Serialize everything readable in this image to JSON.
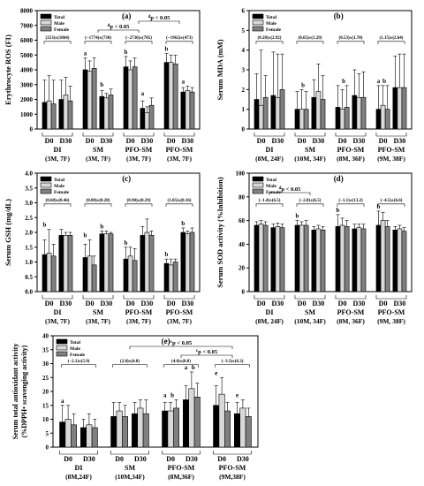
{
  "chart_data": [
    {
      "type": "bar",
      "panel": "(a)",
      "ylabel": "Erythrocyte ROS (FI)",
      "ylim": [
        0,
        8000
      ],
      "yticks": [
        0,
        1000,
        2000,
        3000,
        4000,
        5000,
        6000,
        7000,
        8000
      ],
      "legend": [
        "Total",
        "Male",
        "Female"
      ],
      "legend_position": "top-left",
      "series_colors": [
        "#000000",
        "#d9d9d9",
        "#808080"
      ],
      "groups": [
        {
          "name": "DI",
          "sub": "(3M, 7F)",
          "change": "(253)±(1864)"
        },
        {
          "name": "SM",
          "sub": "(3M, 7F)",
          "change": "(−1774)±(730)"
        },
        {
          "name": "PFO-SM",
          "sub": "(3M, 7F)",
          "change": "(−2736)±(705)"
        },
        {
          "name": "PFO-SM",
          "sub": "(3M, 7F)",
          "change": "(−1962)±(473)"
        }
      ],
      "timepoints": [
        "D0",
        "D30"
      ],
      "values": [
        [
          [
            1800,
            1900,
            1700
          ],
          [
            2000,
            2300,
            1900
          ]
        ],
        [
          [
            4000,
            3900,
            4100
          ],
          [
            2200,
            2100,
            2300
          ]
        ],
        [
          [
            4200,
            4000,
            4200
          ],
          [
            1400,
            1100,
            1600
          ]
        ],
        [
          [
            4500,
            4500,
            4400
          ],
          [
            2500,
            2600,
            2500
          ]
        ]
      ],
      "errors": [
        [
          [
            1500,
            1700,
            1600
          ],
          [
            1300,
            1200,
            1000
          ]
        ],
        [
          [
            800,
            700,
            700
          ],
          [
            400,
            300,
            400
          ]
        ],
        [
          [
            700,
            600,
            600
          ],
          [
            500,
            400,
            500
          ]
        ],
        [
          [
            600,
            500,
            600
          ],
          [
            300,
            300,
            300
          ]
        ]
      ],
      "bar_letters": [
        [
          [
            "",
            ""
          ],
          [
            "",
            ""
          ]
        ],
        [
          [
            "a",
            ""
          ],
          [
            "b",
            ""
          ]
        ],
        [
          [
            "b",
            ""
          ],
          [
            "a",
            ""
          ]
        ],
        [
          [
            "b",
            ""
          ],
          [
            "a",
            ""
          ]
        ]
      ],
      "annotations": [
        {
          "text": "d",
          "suffix": "p < 0.05",
          "from": 1,
          "to": 2,
          "level": 1
        },
        {
          "text": "d",
          "suffix": "p < 0.05",
          "from": 2,
          "to": 3,
          "level": 2
        }
      ]
    },
    {
      "type": "bar",
      "panel": "(b)",
      "ylabel": "Serum MDA (mM)",
      "ylim": [
        0,
        6
      ],
      "yticks": [
        0,
        1,
        2,
        3,
        4,
        5,
        6
      ],
      "legend": [
        "Total",
        "Male",
        "Female"
      ],
      "legend_position": "top-left",
      "series_colors": [
        "#000000",
        "#d9d9d9",
        "#808080"
      ],
      "groups": [
        {
          "name": "DI",
          "sub": "(8M, 24F)",
          "change": "(0.28)±(2.92)"
        },
        {
          "name": "SM",
          "sub": "(10M, 34F)",
          "change": "(0.65)±(1.29)"
        },
        {
          "name": "PFO-SM",
          "sub": "(8M, 36F)",
          "change": "(0.53)±(1.70)"
        },
        {
          "name": "PFO-SM",
          "sub": "(9M, 38F)",
          "change": "(1.15)±(2.64)"
        }
      ],
      "timepoints": [
        "D0",
        "D30"
      ],
      "values": [
        [
          [
            1.5,
            1.2,
            1.6
          ],
          [
            1.7,
            1.6,
            2.0
          ]
        ],
        [
          [
            1.0,
            1.0,
            1.0
          ],
          [
            1.6,
            1.9,
            1.5
          ]
        ],
        [
          [
            1.1,
            1.0,
            1.1
          ],
          [
            1.7,
            1.6,
            1.6
          ]
        ],
        [
          [
            1.0,
            1.2,
            1.0
          ],
          [
            2.1,
            2.1,
            2.1
          ]
        ]
      ],
      "errors": [
        [
          [
            1.3,
            2.8,
            1.1
          ],
          [
            2.2,
            2.2,
            1.8
          ]
        ],
        [
          [
            0.9,
            1.0,
            0.9
          ],
          [
            0.9,
            1.4,
            1.2
          ]
        ],
        [
          [
            1.1,
            1.0,
            1.1
          ],
          [
            1.3,
            1.2,
            1.3
          ]
        ],
        [
          [
            1.2,
            1.0,
            1.2
          ],
          [
            1.6,
            1.7,
            1.7
          ]
        ]
      ],
      "bar_letters": [
        [
          [
            "",
            ""
          ],
          [
            "",
            ""
          ]
        ],
        [
          [
            "",
            "b"
          ],
          [
            "",
            ""
          ]
        ],
        [
          [
            "",
            "b"
          ],
          [
            "",
            ""
          ]
        ],
        [
          [
            "a",
            "b"
          ],
          [
            "",
            ""
          ]
        ]
      ],
      "annotations": []
    },
    {
      "type": "bar",
      "panel": "(c)",
      "ylabel": "Serum GSH (mg/dL)",
      "ylim": [
        0,
        4
      ],
      "yticks": [
        0.0,
        0.5,
        1.0,
        1.5,
        2.0,
        2.5,
        3.0,
        3.5,
        4.0
      ],
      "legend": [
        "Total",
        "Male",
        "Female"
      ],
      "legend_position": "top-left",
      "series_colors": [
        "#000000",
        "#d9d9d9",
        "#808080"
      ],
      "groups": [
        {
          "name": "DI",
          "sub": "(3M, 7F)",
          "change": "(0.68)±(0.46)"
        },
        {
          "name": "SM",
          "sub": "(3M, 7F)",
          "change": "(0.80)±(0.28)"
        },
        {
          "name": "PFO-SM",
          "sub": "(3M, 7F)",
          "change": "(0.90)±(0.29)"
        },
        {
          "name": "PFO-SM",
          "sub": "(3M, 7F)",
          "change": "(1.05)±(0.16)"
        }
      ],
      "timepoints": [
        "D0",
        "D30"
      ],
      "values": [
        [
          [
            1.25,
            1.3,
            1.2
          ],
          [
            1.9,
            1.9,
            1.9
          ]
        ],
        [
          [
            1.15,
            1.2,
            0.9
          ],
          [
            1.95,
            1.95,
            1.95
          ]
        ],
        [
          [
            1.1,
            1.2,
            1.05
          ],
          [
            1.9,
            2.0,
            1.9
          ]
        ],
        [
          [
            0.95,
            0.9,
            1.0
          ],
          [
            2.0,
            1.95,
            2.0
          ]
        ]
      ],
      "errors": [
        [
          [
            0.5,
            0.8,
            0.4
          ],
          [
            0.2,
            0.1,
            0.1
          ]
        ],
        [
          [
            0.45,
            0.55,
            0.3
          ],
          [
            0.1,
            0.1,
            0.05
          ]
        ],
        [
          [
            0.4,
            0.3,
            0.4
          ],
          [
            0.3,
            0.45,
            0.15
          ]
        ],
        [
          [
            0.15,
            0.2,
            0.1
          ],
          [
            0.15,
            0.1,
            0.15
          ]
        ]
      ],
      "bar_letters": [
        [
          [
            "b",
            ""
          ],
          [
            "",
            ""
          ]
        ],
        [
          [
            "b",
            ""
          ],
          [
            "b",
            ""
          ]
        ],
        [
          [
            "b",
            ""
          ],
          [
            "",
            ""
          ]
        ],
        [
          [
            "b",
            ""
          ],
          [
            "b",
            ""
          ]
        ]
      ],
      "annotations": []
    },
    {
      "type": "bar",
      "panel": "(d)",
      "ylabel": "Serum SOD activity (%Inhibition)",
      "ylim": [
        0,
        100
      ],
      "yticks": [
        0,
        20,
        40,
        60,
        80,
        100
      ],
      "legend": [
        "Total",
        "Male",
        "Female"
      ],
      "legend_position": "top-left",
      "series_colors": [
        "#000000",
        "#d9d9d9",
        "#808080"
      ],
      "groups": [
        {
          "name": "DI",
          "sub": "(8M, 24F)",
          "change": "(−1.4)±(6.5)"
        },
        {
          "name": "SM",
          "sub": "(10M, 34F)",
          "change": "(−2.8)±(6.5)"
        },
        {
          "name": "PFO-SM",
          "sub": "(8M, 36F)",
          "change": "(−1.1)±(13.2)"
        },
        {
          "name": "PFO-SM",
          "sub": "(9M, 38F)",
          "change": "(−4.5)±(6.6)"
        }
      ],
      "timepoints": [
        "D0",
        "D30"
      ],
      "values": [
        [
          [
            56,
            57,
            56
          ],
          [
            54,
            55,
            54
          ]
        ],
        [
          [
            56,
            56,
            56
          ],
          [
            52,
            53,
            52
          ]
        ],
        [
          [
            55,
            56,
            55
          ],
          [
            53,
            54,
            53
          ]
        ],
        [
          [
            56,
            60,
            55
          ],
          [
            52,
            53,
            51
          ]
        ]
      ],
      "errors": [
        [
          [
            3,
            3,
            3
          ],
          [
            3,
            3,
            3
          ]
        ],
        [
          [
            4,
            3,
            4
          ],
          [
            3,
            3,
            3
          ]
        ],
        [
          [
            10,
            6,
            5
          ],
          [
            4,
            3,
            4
          ]
        ],
        [
          [
            12,
            7,
            5
          ],
          [
            3,
            3,
            3
          ]
        ]
      ],
      "bar_letters": [
        [
          [
            "",
            ""
          ],
          [
            "",
            ""
          ]
        ],
        [
          [
            "b",
            ""
          ],
          [
            "",
            ""
          ]
        ],
        [
          [
            "b",
            ""
          ],
          [
            "",
            ""
          ]
        ],
        [
          [
            "b",
            ""
          ],
          [
            "",
            ""
          ]
        ]
      ],
      "annotations": [
        {
          "text": "d",
          "suffix": "p < 0.05",
          "from": 0,
          "to": 1,
          "level": 1
        }
      ]
    },
    {
      "type": "bar",
      "panel": "(e)",
      "ylabel": "Serum total antioxidant activity (%DPPH• scavenging activity)",
      "ylim": [
        0,
        40
      ],
      "yticks": [
        0,
        5,
        10,
        15,
        20,
        25,
        30,
        35,
        40
      ],
      "legend": [
        "Total",
        "Male",
        "Female"
      ],
      "legend_position": "top-left",
      "series_colors": [
        "#000000",
        "#d9d9d9",
        "#808080"
      ],
      "groups": [
        {
          "name": "DI",
          "sub": "(8M,24F)",
          "change": "(−2.1)±(5.9)"
        },
        {
          "name": "SM",
          "sub": "(10M,34F)",
          "change": "(2.8)±(4.8)"
        },
        {
          "name": "PFO-SM",
          "sub": "(8M,36F)",
          "change": "(4.0)±(8.0)"
        },
        {
          "name": "PFO-SM",
          "sub": "(9M,38F)",
          "change": "(−3.3)±(6.3)"
        }
      ],
      "timepoints": [
        "D0",
        "D30"
      ],
      "values": [
        [
          [
            9,
            10,
            8
          ],
          [
            7,
            8,
            7
          ]
        ],
        [
          [
            11,
            13,
            11
          ],
          [
            12,
            14,
            12
          ]
        ],
        [
          [
            13,
            13,
            14
          ],
          [
            17,
            21,
            18
          ]
        ],
        [
          [
            15,
            19,
            13
          ],
          [
            12,
            14,
            11
          ]
        ]
      ],
      "errors": [
        [
          [
            6,
            5,
            4
          ],
          [
            3,
            4,
            3
          ]
        ],
        [
          [
            5,
            3,
            4
          ],
          [
            4,
            3,
            5
          ]
        ],
        [
          [
            3,
            3,
            3
          ],
          [
            5,
            6,
            5
          ]
        ],
        [
          [
            7,
            6,
            3
          ],
          [
            4,
            3,
            3
          ]
        ]
      ],
      "bar_letters": [
        [
          [
            "a",
            ""
          ],
          [
            "",
            ""
          ]
        ],
        [
          [
            "",
            ""
          ],
          [
            "",
            ""
          ]
        ],
        [
          [
            "a",
            "b"
          ],
          [
            "a",
            "b"
          ]
        ],
        [
          [
            "e",
            ""
          ],
          [
            "e",
            ""
          ]
        ]
      ],
      "annotations": [
        {
          "text": "c",
          "suffix": "p < 0.05",
          "from": 2,
          "to": 3,
          "level": 1
        },
        {
          "text": "c",
          "suffix": "p < 0.05",
          "from": 1,
          "to": 3,
          "level": 2
        }
      ]
    }
  ]
}
